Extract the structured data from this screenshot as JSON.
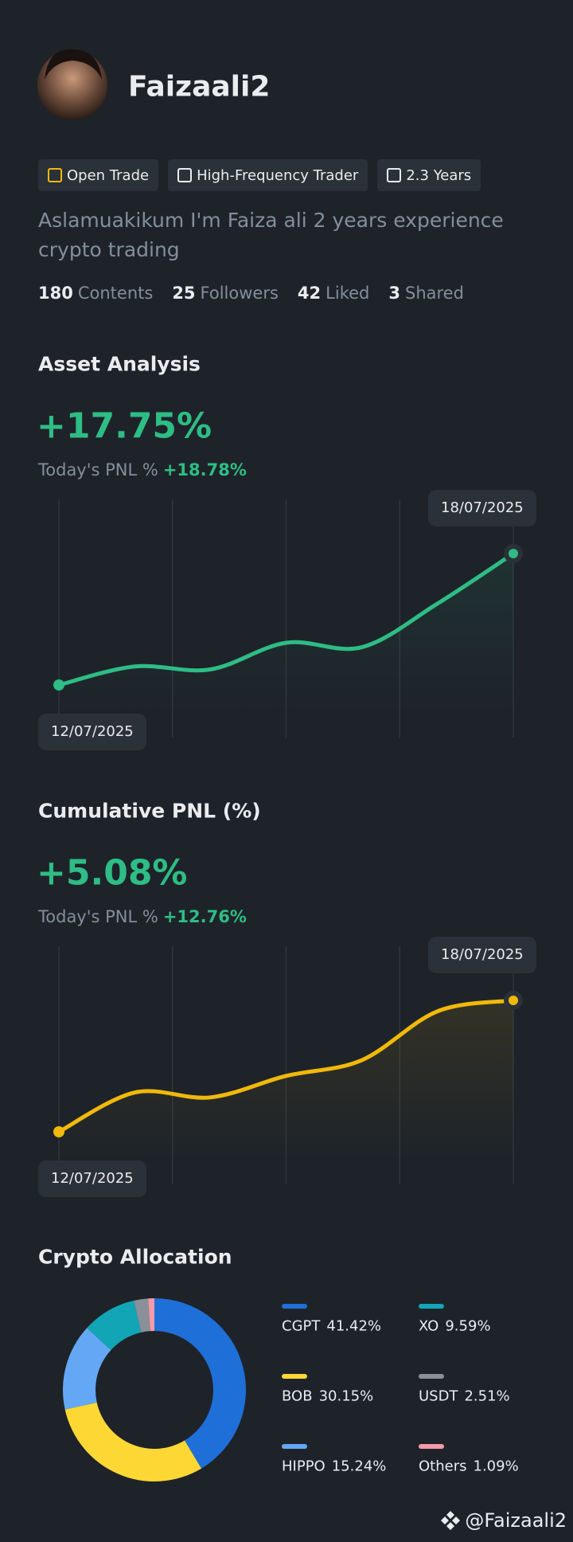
{
  "profile": {
    "name": "Faizaali2",
    "tags": [
      "Open Trade",
      "High-Frequency Trader",
      "2.3 Years"
    ],
    "bio": "Aslamuakikum I'm Faiza ali 2 years experience crypto trading",
    "stats": [
      {
        "value": 180,
        "label": "Contents"
      },
      {
        "value": 25,
        "label": "Followers"
      },
      {
        "value": 42,
        "label": "Liked"
      },
      {
        "value": 3,
        "label": "Shared"
      }
    ]
  },
  "chart_data": [
    {
      "type": "line",
      "title": "Asset Analysis",
      "headline": "+17.75%",
      "today_label": "Today's PNL %",
      "today_value": "+18.78%",
      "categories": [
        "12/07/2025",
        null,
        null,
        null,
        null,
        null,
        "18/07/2025"
      ],
      "values": [
        0,
        2.5,
        2.1,
        5.7,
        5.1,
        11.0,
        17.75
      ],
      "color": "#2ebd85"
    },
    {
      "type": "line",
      "title": "Cumulative PNL (%)",
      "headline": "+5.08%",
      "today_label": "Today's PNL %",
      "today_value": "+12.76%",
      "categories": [
        "12/07/2025",
        null,
        null,
        null,
        null,
        null,
        "18/07/2025"
      ],
      "values": [
        0,
        1.52,
        1.33,
        2.16,
        2.77,
        4.66,
        5.08
      ],
      "color": "#f0b90b"
    },
    {
      "type": "pie",
      "title": "Crypto Allocation",
      "categories": [
        "CGPT",
        "BOB",
        "HIPPO",
        "XO",
        "USDT",
        "Others"
      ],
      "values": [
        41.42,
        30.15,
        15.24,
        9.59,
        2.51,
        1.09
      ],
      "value_labels": [
        "41.42%",
        "30.15%",
        "15.24%",
        "9.59%",
        "2.51%",
        "1.09%"
      ],
      "colors": [
        "#1f6fd9",
        "#fdd835",
        "#64a8f5",
        "#12a5b5",
        "#8a9099",
        "#f49aa8"
      ]
    }
  ],
  "footer": {
    "handle": "@Faizaali2"
  }
}
